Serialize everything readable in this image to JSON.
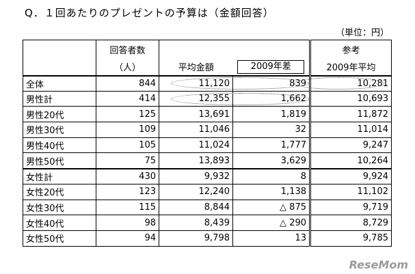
{
  "header": {
    "title": "Q．１回あたりのプレゼントの予算は（金額回答）",
    "unit": "（単位：円）"
  },
  "table": {
    "columns": {
      "respondents": [
        "回答者数",
        "（人）"
      ],
      "average": "平均金額",
      "diff": "2009年差",
      "reference": [
        "参考",
        "2009年平均"
      ]
    },
    "rows": [
      [
        "全体",
        "844",
        "11,120",
        "839",
        "10,281"
      ],
      [
        "男性計",
        "414",
        "12,355",
        "1,662",
        "10,693"
      ],
      [
        "男性20代",
        "125",
        "13,691",
        "1,819",
        "11,872"
      ],
      [
        "男性30代",
        "109",
        "11,046",
        "32",
        "11,014"
      ],
      [
        "男性40代",
        "105",
        "11,024",
        "1,777",
        "9,247"
      ],
      [
        "男性50代",
        "75",
        "13,893",
        "3,629",
        "10,264"
      ],
      [
        "女性計",
        "430",
        "9,932",
        "8",
        "9,924"
      ],
      [
        "女性20代",
        "123",
        "12,240",
        "1,138",
        "11,102"
      ],
      [
        "女性30代",
        "115",
        "8,844",
        "△ 875",
        "9,719"
      ],
      [
        "女性40代",
        "98",
        "8,439",
        "△ 290",
        "8,729"
      ],
      [
        "女性50代",
        "94",
        "9,798",
        "13",
        "9,785"
      ]
    ]
  },
  "logo": "ReseMom"
}
